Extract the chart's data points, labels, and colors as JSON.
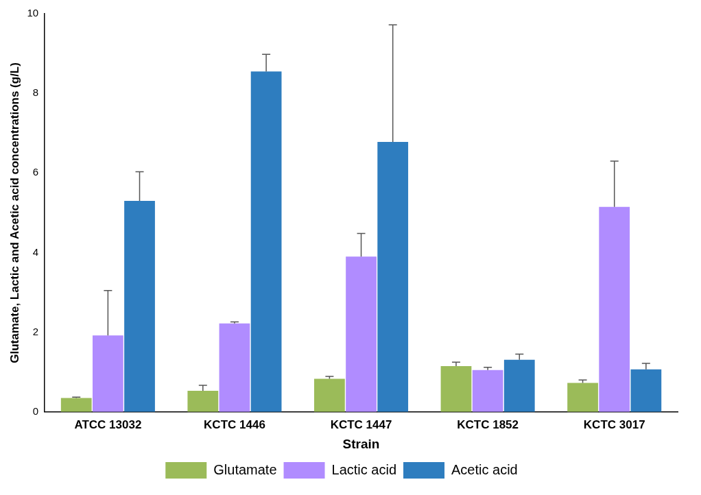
{
  "chart_data": {
    "type": "bar",
    "xlabel": "Strain",
    "ylabel": "Glutamate, Lactic and Acetic acid concentrations (g/L)",
    "categories": [
      "ATCC 13032",
      "KCTC 1446",
      "KCTC 1447",
      "KCTC 1852",
      "KCTC 3017"
    ],
    "series": [
      {
        "name": "Glutamate",
        "color": "#9bbb59",
        "values": [
          0.35,
          0.53,
          0.83,
          1.15,
          0.73
        ],
        "errors": [
          [
            0.35,
            0.37
          ],
          [
            0.53,
            0.67
          ],
          [
            0.83,
            0.89
          ],
          [
            1.15,
            1.25
          ],
          [
            0.73,
            0.8
          ]
        ]
      },
      {
        "name": "Lactic acid",
        "color": "#b08cff",
        "values": [
          1.92,
          2.22,
          3.9,
          1.05,
          5.15
        ],
        "errors": [
          [
            1.92,
            3.05
          ],
          [
            2.22,
            2.26
          ],
          [
            3.9,
            4.48
          ],
          [
            1.05,
            1.12
          ],
          [
            5.15,
            6.3
          ]
        ]
      },
      {
        "name": "Acetic acid",
        "color": "#2e7dbf",
        "values": [
          5.3,
          8.55,
          6.78,
          1.31,
          1.07
        ],
        "errors": [
          [
            5.3,
            6.03
          ],
          [
            8.55,
            8.98
          ],
          [
            6.78,
            9.72
          ],
          [
            1.31,
            1.45
          ],
          [
            1.07,
            1.22
          ]
        ]
      }
    ],
    "ylim": [
      0,
      10
    ],
    "yticks": [
      0,
      2,
      4,
      6,
      8,
      10
    ],
    "grid": false,
    "legend": "bottom"
  }
}
